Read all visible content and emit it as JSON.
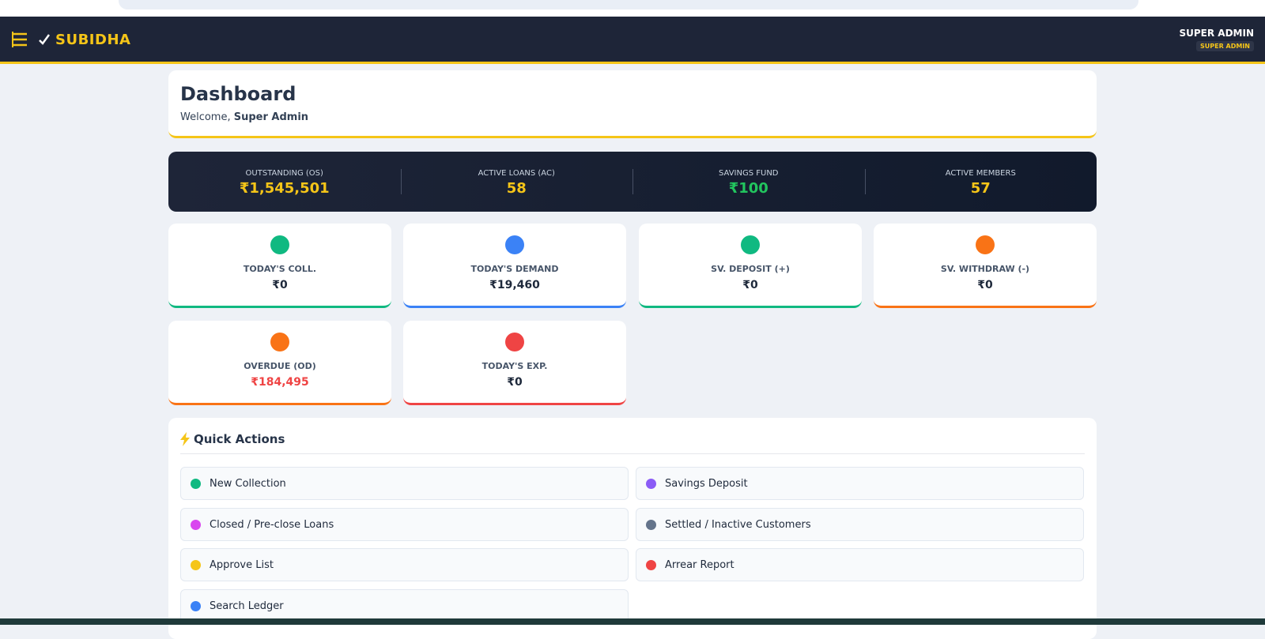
{
  "header": {
    "brand": "SUBIDHA",
    "user_name": "SUPER ADMIN",
    "user_role": "SUPER ADMIN"
  },
  "dashboard": {
    "title": "Dashboard",
    "welcome": "Welcome,",
    "name": "Super Admin"
  },
  "summary": [
    {
      "label": "OUTSTANDING (OS)",
      "value": "₹1,545,501"
    },
    {
      "label": "ACTIVE LOANS (AC)",
      "value": "58"
    },
    {
      "label": "SAVINGS FUND",
      "value": "₹100"
    },
    {
      "label": "ACTIVE MEMBERS",
      "value": "57"
    }
  ],
  "cards": [
    {
      "label": "TODAY'S COLL.",
      "value": "₹0"
    },
    {
      "label": "TODAY'S DEMAND",
      "value": "₹19,460"
    },
    {
      "label": "SV. DEPOSIT (+)",
      "value": "₹0"
    },
    {
      "label": "SV. WITHDRAW (-)",
      "value": "₹0"
    },
    {
      "label": "OVERDUE (OD)",
      "value": "₹184,495"
    },
    {
      "label": "TODAY'S EXP.",
      "value": "₹0"
    }
  ],
  "quick_actions": {
    "title": "Quick Actions",
    "items": [
      "New Collection",
      "Savings Deposit",
      "Closed / Pre-close Loans",
      "Settled / Inactive Customers",
      "Approve List",
      "Arrear Report",
      "Search Ledger"
    ]
  }
}
